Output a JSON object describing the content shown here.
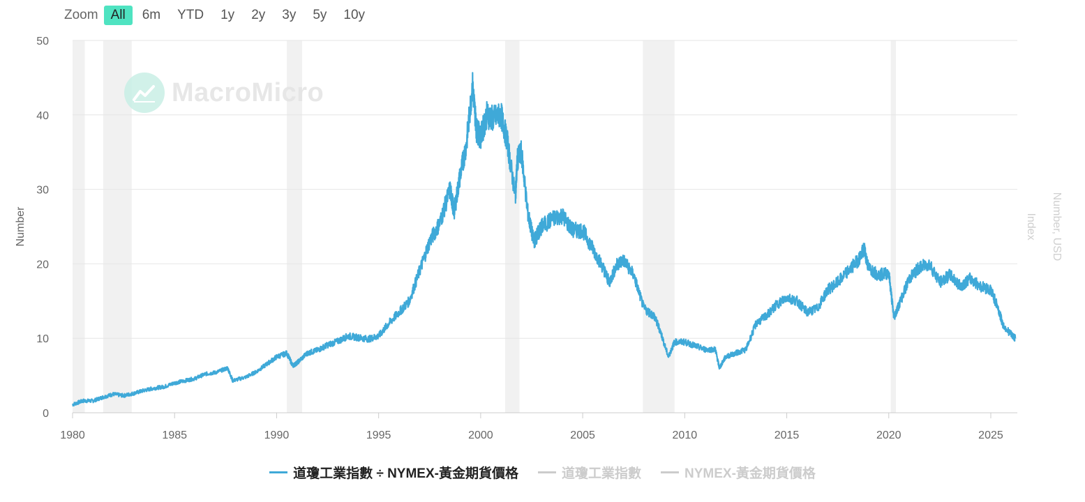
{
  "zoom": {
    "label": "Zoom",
    "options": [
      "All",
      "6m",
      "YTD",
      "1y",
      "2y",
      "3y",
      "5y",
      "10y"
    ],
    "selected": "All"
  },
  "watermark": {
    "text": "MacroMicro"
  },
  "colors": {
    "series": "#3fa9d8",
    "shade": "#f1f1f1",
    "grid": "#e6e6e6",
    "inactive": "#cccccc",
    "zoom_active": "#4fe3c1"
  },
  "chart_data": {
    "type": "line",
    "ylabel": "Number",
    "ylabel_right_1": "Number, USD",
    "ylabel_right_2": "Index",
    "ylim": [
      0,
      50
    ],
    "yticks": [
      "0",
      "10",
      "20",
      "30",
      "40",
      "50"
    ],
    "xlim": [
      1980,
      2026.3
    ],
    "xticks": [
      "1980",
      "1985",
      "1990",
      "1995",
      "2000",
      "2005",
      "2010",
      "2015",
      "2020",
      "2025"
    ],
    "recessions": [
      [
        1980.0,
        1980.6
      ],
      [
        1981.5,
        1982.9
      ],
      [
        1990.5,
        1991.25
      ],
      [
        2001.2,
        2001.9
      ],
      [
        2007.95,
        2009.5
      ],
      [
        2020.1,
        2020.35
      ]
    ],
    "legend": [
      {
        "name": "道瓊工業指數 ÷ NYMEX-黃金期貨價格",
        "active": true
      },
      {
        "name": "道瓊工業指數",
        "active": false
      },
      {
        "name": "NYMEX-黃金期貨價格",
        "active": false
      }
    ],
    "series": [
      {
        "name": "道瓊工業指數 ÷ NYMEX-黃金期貨價格",
        "x": [
          1980.0,
          1980.5,
          1981.0,
          1981.5,
          1982.0,
          1982.5,
          1983.0,
          1983.5,
          1984.0,
          1984.5,
          1985.0,
          1985.5,
          1986.0,
          1986.5,
          1987.0,
          1987.6,
          1987.85,
          1988.5,
          1989.0,
          1989.5,
          1990.0,
          1990.5,
          1990.8,
          1991.0,
          1991.5,
          1992.0,
          1992.5,
          1993.0,
          1993.5,
          1994.0,
          1994.5,
          1995.0,
          1995.5,
          1996.0,
          1996.5,
          1997.0,
          1997.5,
          1998.0,
          1998.5,
          1998.7,
          1999.0,
          1999.3,
          1999.6,
          1999.8,
          2000.0,
          2000.3,
          2000.6,
          2001.0,
          2001.3,
          2001.7,
          2001.8,
          2002.0,
          2002.3,
          2002.6,
          2002.8,
          2003.0,
          2003.5,
          2004.0,
          2004.5,
          2005.0,
          2005.5,
          2006.0,
          2006.3,
          2006.7,
          2007.0,
          2007.5,
          2008.0,
          2008.5,
          2008.8,
          2009.2,
          2009.5,
          2010.0,
          2010.5,
          2011.0,
          2011.5,
          2011.7,
          2012.0,
          2012.5,
          2013.0,
          2013.5,
          2014.0,
          2014.5,
          2015.0,
          2015.5,
          2016.0,
          2016.5,
          2017.0,
          2017.5,
          2018.0,
          2018.5,
          2018.8,
          2019.0,
          2019.5,
          2020.0,
          2020.25,
          2020.5,
          2021.0,
          2021.5,
          2022.0,
          2022.5,
          2023.0,
          2023.5,
          2024.0,
          2024.5,
          2025.0,
          2025.3,
          2025.6,
          2026.0,
          2026.2
        ],
        "y": [
          1.1,
          1.6,
          1.6,
          2.1,
          2.5,
          2.3,
          2.6,
          3.0,
          3.3,
          3.5,
          4.0,
          4.3,
          4.6,
          5.2,
          5.4,
          6.0,
          4.3,
          4.8,
          5.5,
          6.5,
          7.5,
          8.0,
          6.3,
          6.7,
          8.0,
          8.4,
          9.1,
          9.6,
          10.3,
          10.1,
          9.9,
          10.3,
          12.0,
          13.5,
          15.0,
          19.0,
          23.0,
          25.5,
          30.0,
          27.0,
          32.0,
          36.0,
          44.0,
          38.0,
          37.0,
          40.0,
          39.5,
          40.0,
          36.5,
          29.0,
          34.0,
          35.0,
          27.0,
          23.0,
          24.0,
          25.0,
          26.0,
          26.5,
          24.5,
          24.5,
          22.0,
          19.5,
          17.5,
          20.0,
          20.5,
          18.5,
          14.0,
          13.0,
          11.0,
          7.5,
          9.5,
          9.5,
          9.0,
          8.5,
          8.5,
          6.0,
          7.5,
          8.0,
          8.5,
          12.0,
          13.0,
          14.5,
          15.5,
          15.0,
          13.5,
          14.0,
          16.5,
          17.5,
          19.0,
          20.5,
          22.0,
          19.5,
          18.5,
          18.8,
          12.8,
          14.5,
          18.0,
          19.5,
          20.0,
          17.5,
          18.5,
          17.0,
          18.0,
          17.0,
          16.5,
          14.5,
          11.8,
          10.5,
          10.0
        ]
      }
    ]
  }
}
